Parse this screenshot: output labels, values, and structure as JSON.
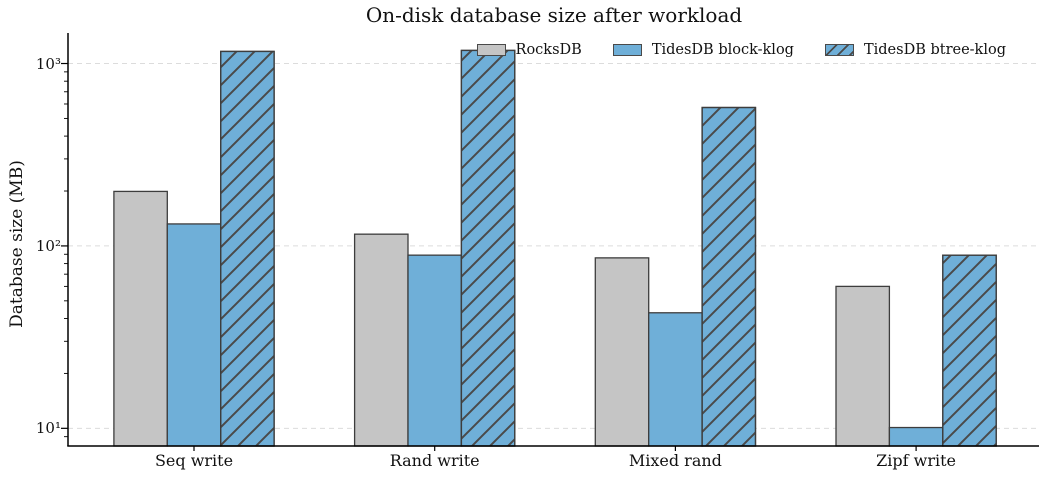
{
  "chart_data": {
    "type": "bar",
    "title": "On-disk database size after workload",
    "xlabel": "",
    "ylabel": "Database size (MB)",
    "y_scale": "log",
    "ylim": [
      8,
      1470
    ],
    "grid": "horizontal dashed lines at major ticks only",
    "legend_position": "top, horizontal row, no frame",
    "categories": [
      "Seq write",
      "Rand write",
      "Mixed rand",
      "Zipf write"
    ],
    "y_ticks": [
      {
        "value": 10,
        "label": "10¹"
      },
      {
        "value": 100,
        "label": "10²"
      },
      {
        "value": 1000,
        "label": "10³"
      }
    ],
    "series": [
      {
        "name": "RocksDB",
        "fill": "#c5c5c5",
        "hatch": null,
        "values": [
          199,
          116,
          86,
          60
        ]
      },
      {
        "name": "TidesDB block-klog",
        "fill": "#6fafd8",
        "hatch": null,
        "values": [
          132,
          89,
          43,
          10.1
        ]
      },
      {
        "name": "TidesDB btree-klog",
        "fill": "#6fafd8",
        "hatch": "/",
        "values": [
          1165,
          1180,
          574,
          89
        ]
      }
    ],
    "colors": {
      "bar_edge": "#3d3d3d",
      "hatch_line": "#4a4a4a",
      "grid": "#dcdcdc",
      "axis": "#000000",
      "text": "#111111",
      "background": "#ffffff"
    }
  }
}
